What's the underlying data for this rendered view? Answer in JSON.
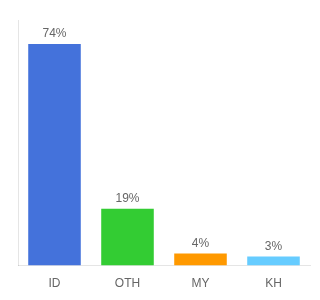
{
  "chart_data": {
    "type": "bar",
    "categories": [
      "ID",
      "OTH",
      "MY",
      "KH"
    ],
    "values": [
      74,
      19,
      4,
      3
    ],
    "value_labels": [
      "74%",
      "19%",
      "4%",
      "3%"
    ],
    "colors": [
      "#4472db",
      "#33cc33",
      "#ff9900",
      "#66ccff"
    ],
    "ylim": [
      0,
      82
    ],
    "data_labels": true,
    "tick_labels": "x",
    "grid": false
  }
}
